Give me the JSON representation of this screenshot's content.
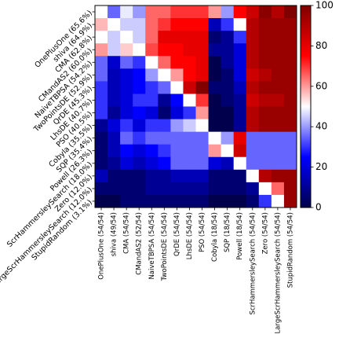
{
  "chart_data": {
    "type": "heatmap",
    "title": "",
    "xlabel": "",
    "ylabel": "",
    "row_labels": [
      "OnePlusOne (65.6%)",
      "shiva (64.9%)",
      "CMA (62.8%)",
      "CMandAS2 (60.0%)",
      "NaiveTBPSA (54.2%)",
      "TwoPointsDE (52.9%)",
      "QrDE (45.3%)",
      "LhsDE (40.7%)",
      "PSO (40.5%)",
      "Cobyla (35.5%)",
      "SQP (35.4%)",
      "Powell (26.3%)",
      "ScrHammersleySearch (18.0%)",
      "Zero (12.0%)",
      "LargeScrHammersleySearch (12.0%)",
      "StupidRandom (3.1%)"
    ],
    "col_labels": [
      "OnePlusOne (54/54)",
      "shiva (49/54)",
      "CMA (54/54)",
      "CMandAS2 (52/54)",
      "NaiveTBPSA (54/54)",
      "TwoPointsDE (54/54)",
      "QrDE (54/54)",
      "LhsDE (54/54)",
      "PSO (54/54)",
      "Cobyla (18/54)",
      "SQP (18/54)",
      "Powell (18/54)",
      "ScrHammersleySearch (54/54)",
      "Zero (54/54)",
      "LargeScrHammersleySearch (54/54)",
      "StupidRandom (54/54)"
    ],
    "values": [
      [
        50,
        35,
        48,
        40,
        65,
        65,
        70,
        70,
        70,
        60,
        40,
        75,
        85,
        98,
        90,
        100
      ],
      [
        57,
        50,
        45,
        45,
        65,
        70,
        75,
        75,
        75,
        15,
        30,
        50,
        90,
        95,
        95,
        95
      ],
      [
        50,
        45,
        50,
        45,
        65,
        80,
        80,
        80,
        80,
        5,
        10,
        30,
        90,
        95,
        95,
        95
      ],
      [
        60,
        45,
        55,
        50,
        68,
        75,
        75,
        80,
        80,
        10,
        10,
        20,
        90,
        95,
        95,
        95
      ],
      [
        35,
        18,
        35,
        30,
        50,
        65,
        75,
        75,
        80,
        0,
        10,
        20,
        90,
        95,
        95,
        95
      ],
      [
        35,
        15,
        20,
        25,
        40,
        50,
        60,
        75,
        80,
        0,
        5,
        20,
        85,
        90,
        95,
        95
      ],
      [
        30,
        15,
        20,
        25,
        30,
        35,
        50,
        85,
        100,
        5,
        5,
        15,
        90,
        95,
        95,
        95
      ],
      [
        30,
        15,
        20,
        30,
        30,
        10,
        25,
        50,
        70,
        0,
        5,
        10,
        85,
        90,
        90,
        95
      ],
      [
        30,
        10,
        20,
        25,
        20,
        5,
        20,
        30,
        60,
        0,
        0,
        10,
        90,
        95,
        95,
        95
      ],
      [
        10,
        20,
        30,
        20,
        30,
        30,
        40,
        45,
        50,
        0,
        0,
        10,
        90,
        95,
        95,
        95
      ],
      [
        5,
        15,
        35,
        30,
        35,
        35,
        35,
        35,
        35,
        50,
        40,
        80,
        35,
        35,
        35,
        35
      ],
      [
        5,
        15,
        25,
        20,
        25,
        30,
        35,
        35,
        35,
        60,
        50,
        85,
        35,
        35,
        35,
        35
      ],
      [
        5,
        10,
        20,
        15,
        20,
        25,
        35,
        35,
        35,
        20,
        15,
        50,
        35,
        35,
        35,
        35
      ],
      [
        15,
        5,
        5,
        5,
        10,
        10,
        15,
        15,
        15,
        5,
        5,
        5,
        50,
        90,
        95,
        95
      ],
      [
        5,
        5,
        5,
        5,
        10,
        10,
        10,
        10,
        10,
        5,
        5,
        5,
        10,
        50,
        65,
        95
      ],
      [
        0,
        0,
        5,
        5,
        5,
        5,
        5,
        5,
        5,
        0,
        0,
        0,
        5,
        30,
        50,
        95
      ]
    ],
    "colormap": "seismic",
    "colorbar": {
      "min": 0,
      "max": 100,
      "ticks": [
        0,
        20,
        40,
        60,
        80,
        100
      ]
    },
    "grid": false
  }
}
